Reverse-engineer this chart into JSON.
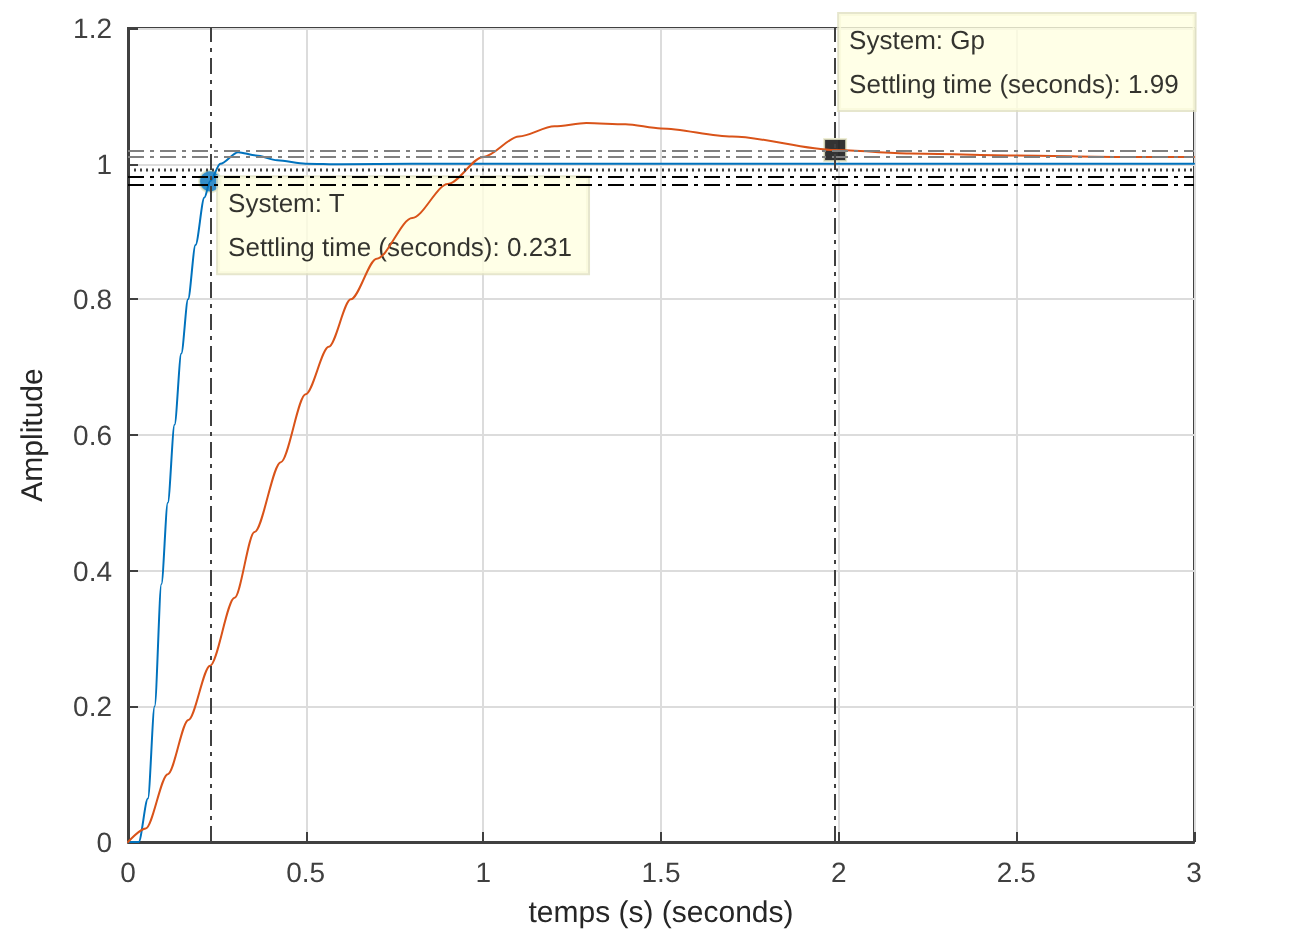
{
  "chart_data": {
    "type": "line",
    "xlabel": "temps (s) (seconds)",
    "ylabel": "Amplitude",
    "xlim": [
      0,
      3
    ],
    "ylim": [
      0,
      1.2
    ],
    "xticks": [
      0,
      0.5,
      1,
      1.5,
      2,
      2.5,
      3
    ],
    "yticks": [
      0,
      0.2,
      0.4,
      0.6,
      0.8,
      1,
      1.2
    ],
    "grid": true,
    "marker": "none",
    "line_style": "solid",
    "series": [
      {
        "color": "#0072bd",
        "x": [
          0,
          0.03,
          0.056,
          0.075,
          0.094,
          0.112,
          0.131,
          0.15,
          0.169,
          0.19,
          0.215,
          0.231,
          0.26,
          0.31,
          0.36,
          0.42,
          0.5,
          0.6,
          0.8,
          1,
          1.5,
          2,
          2.5,
          3
        ],
        "values": [
          0,
          0,
          0.064,
          0.2,
          0.38,
          0.5,
          0.615,
          0.72,
          0.8,
          0.88,
          0.95,
          0.974,
          1.0,
          1.017,
          1.012,
          1.005,
          1.0,
          0.999,
          1.0,
          1.0,
          1.0,
          1.0,
          1.0,
          1.0
        ]
      },
      {
        "color": "#d95319",
        "x": [
          0,
          0.05,
          0.112,
          0.17,
          0.231,
          0.3,
          0.356,
          0.43,
          0.5,
          0.565,
          0.627,
          0.7,
          0.8,
          0.9,
          1,
          1.1,
          1.2,
          1.29,
          1.4,
          1.5,
          1.7,
          1.99,
          2.2,
          2.5,
          2.8,
          3
        ],
        "values": [
          0,
          0.02,
          0.1,
          0.18,
          0.26,
          0.36,
          0.457,
          0.56,
          0.66,
          0.73,
          0.8,
          0.86,
          0.92,
          0.97,
          1.01,
          1.04,
          1.055,
          1.06,
          1.058,
          1.052,
          1.04,
          1.02,
          1.015,
          1.012,
          1.01,
          1.01
        ]
      },
      {
        "type": "scatter",
        "marker": "circle",
        "color": "#0072bd",
        "x": [
          0.231
        ],
        "values": [
          0.974
        ]
      },
      {
        "type": "scatter",
        "marker": "square",
        "color": "#000000",
        "x": [
          1.99
        ],
        "values": [
          1.02
        ]
      }
    ],
    "annotations": [
      {
        "text": "System: T\nSettling time (seconds): 0.231",
        "x": 0.231,
        "y": 0.974
      },
      {
        "text": "System: Gp\nSettling time (seconds): 1.99",
        "x": 1.99,
        "y": 1.02
      }
    ],
    "ref_lines": [
      {
        "axis": "y",
        "value": 1.02,
        "color": "#808080",
        "line_style": "dashed"
      },
      {
        "axis": "y",
        "value": 1.015,
        "color": "#808080",
        "line_style": "dashed"
      },
      {
        "axis": "y",
        "value": 0.992,
        "color": "#404040",
        "line_style": "dotted"
      },
      {
        "axis": "y",
        "value": 0.983,
        "color": "#000000",
        "line_style": "dashed"
      },
      {
        "axis": "y",
        "value": 0.974,
        "color": "#000000",
        "line_style": "dashed"
      },
      {
        "axis": "x",
        "value": 0.231,
        "color": "#404040",
        "line_style": "dashed"
      },
      {
        "axis": "x",
        "value": 1.99,
        "color": "#404040",
        "line_style": "dashed"
      }
    ]
  }
}
